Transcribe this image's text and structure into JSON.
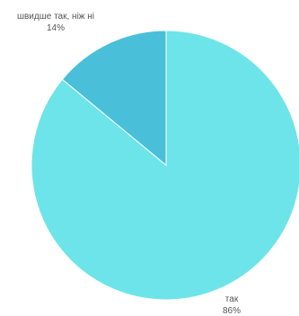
{
  "chart_data": {
    "type": "pie",
    "slices": [
      {
        "label": "так",
        "percent_label": "86%",
        "value": 86,
        "color": "#6de4e9"
      },
      {
        "label": "швидше так, ніж ні",
        "percent_label": "14%",
        "value": 14,
        "color": "#4abfd9"
      }
    ],
    "start": "12 o'clock",
    "direction": "clockwise",
    "slice_border_color": "#ffffff",
    "title": "",
    "legend": "none"
  }
}
